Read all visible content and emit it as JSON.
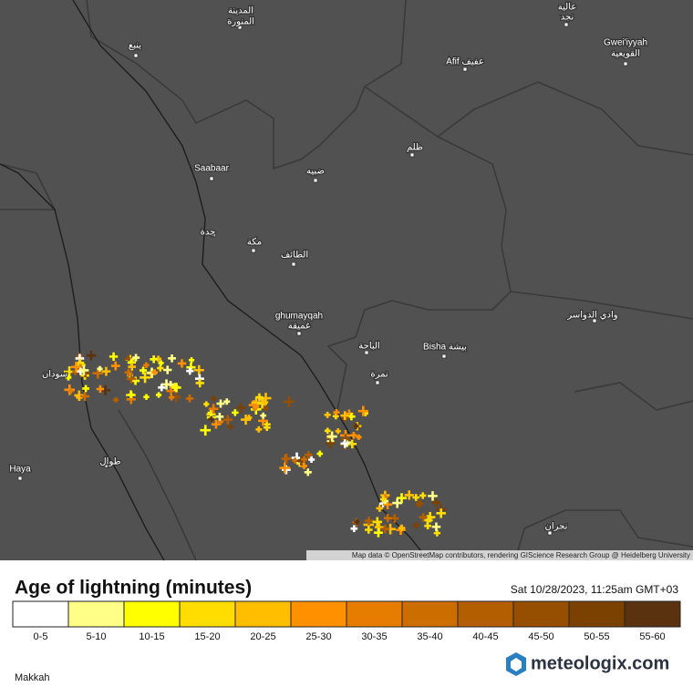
{
  "map": {
    "places": [
      "المدينة",
      "المنورة",
      "ينبع",
      "عالية",
      "نجد",
      "Gwei'iyyah",
      "القويعية",
      "Afif عفيف",
      "Saabaar",
      "ظلم",
      "ضبيه",
      "جدة",
      "مكة",
      "الطائف",
      "ghumayqah",
      "غميقة",
      "وادي الدواسر",
      "Bisha بيشة",
      "الباحة",
      "نمرة",
      "سودان",
      "Haya",
      "طوال",
      "نجران"
    ],
    "attribution": "Map data © OpenStreetMap contributors, rendering GIScience Research Group @ Heidelberg University"
  },
  "legend": {
    "title": "Age of lightning (minutes)",
    "timestamp": "Sat 10/28/2023, 11:25am GMT+03",
    "items": [
      {
        "label": "0-5",
        "color": "#ffffff"
      },
      {
        "label": "5-10",
        "color": "#ffff88"
      },
      {
        "label": "10-15",
        "color": "#ffff00"
      },
      {
        "label": "15-20",
        "color": "#ffdd00"
      },
      {
        "label": "20-25",
        "color": "#ffbe00"
      },
      {
        "label": "25-30",
        "color": "#ff9100"
      },
      {
        "label": "30-35",
        "color": "#e67d00"
      },
      {
        "label": "35-40",
        "color": "#cc6d00"
      },
      {
        "label": "40-45",
        "color": "#b35e00"
      },
      {
        "label": "45-50",
        "color": "#964f00"
      },
      {
        "label": "50-55",
        "color": "#7a4100"
      },
      {
        "label": "55-60",
        "color": "#5a3210"
      }
    ]
  },
  "footer": {
    "region": "Makkah",
    "brand": "meteologix.com"
  }
}
